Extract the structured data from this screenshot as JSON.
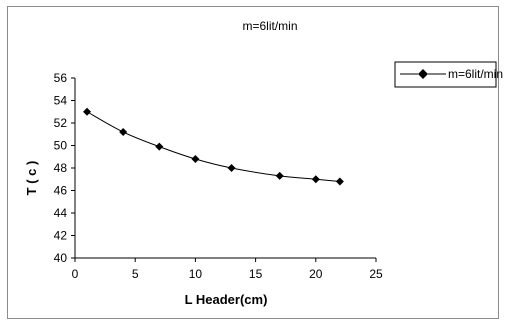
{
  "chart_data": {
    "type": "line",
    "title": "m=6lit/min",
    "xlabel": "L  Header(cm)",
    "ylabel": "T ( c )",
    "xlim": [
      0,
      25
    ],
    "ylim": [
      40,
      56
    ],
    "x_ticks": [
      "0",
      "5",
      "10",
      "15",
      "20",
      "25"
    ],
    "y_ticks": [
      "40",
      "42",
      "44",
      "46",
      "48",
      "50",
      "52",
      "54",
      "56"
    ],
    "grid": false,
    "legend_position": "right",
    "series": [
      {
        "name": "m=6lit/min",
        "color": "#000000",
        "marker": "diamond",
        "x": [
          1,
          4,
          7,
          10,
          13,
          17,
          20,
          22
        ],
        "y": [
          53.0,
          51.2,
          49.9,
          48.8,
          48.0,
          47.3,
          47.0,
          46.8
        ]
      }
    ]
  }
}
